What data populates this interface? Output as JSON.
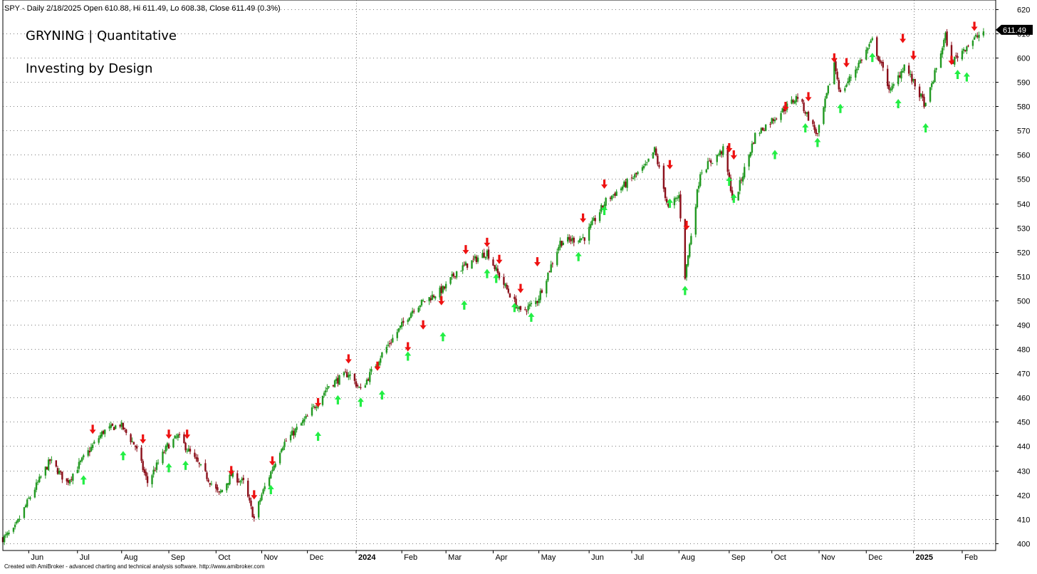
{
  "header": {
    "title": "SPY - Daily 2/18/2025 Open 610.88, Hi 611.49, Lo 608.38, Close 611.49 (0.3%)"
  },
  "branding": {
    "line1": "GRYNING | Quantitative",
    "line2": "Investing by Design"
  },
  "footer": {
    "credit": "Created with AmiBroker - advanced charting and technical analysis software. http://www.amibroker.com"
  },
  "colors": {
    "up": "#229922",
    "down": "#8b0f1a",
    "buy_arrow": "#22ee44",
    "sell_arrow": "#ee1111",
    "grid": "#7a7a7a",
    "last_price_bg": "#000000",
    "last_price_fg": "#ffffff"
  },
  "chart_data": {
    "type": "candlestick",
    "symbol": "SPY",
    "interval": "Daily",
    "title": "SPY - Daily 2/18/2025 Open 610.88, Hi 611.49, Lo 608.38, Close 611.49 (0.3%)",
    "last_bar": {
      "date": "2/18/2025",
      "open": 610.88,
      "high": 611.49,
      "low": 608.38,
      "close": 611.49,
      "change_pct": 0.3
    },
    "last_price_label": "611.49",
    "y_axis": {
      "position": "right",
      "range": [
        397,
        622
      ],
      "ticks": [
        400,
        410,
        420,
        430,
        440,
        450,
        460,
        470,
        480,
        490,
        500,
        510,
        520,
        530,
        540,
        550,
        560,
        570,
        580,
        590,
        600,
        610,
        620
      ]
    },
    "x_axis": {
      "range": [
        "2023-05-15",
        "2025-02-25"
      ],
      "ticks": [
        {
          "label": "Jun",
          "date": "2023-06-01",
          "bold": false
        },
        {
          "label": "Jul",
          "date": "2023-07-03",
          "bold": false
        },
        {
          "label": "Aug",
          "date": "2023-08-01",
          "bold": false
        },
        {
          "label": "Sep",
          "date": "2023-09-01",
          "bold": false
        },
        {
          "label": "Oct",
          "date": "2023-10-02",
          "bold": false
        },
        {
          "label": "Nov",
          "date": "2023-11-01",
          "bold": false
        },
        {
          "label": "Dec",
          "date": "2023-12-01",
          "bold": false
        },
        {
          "label": "2024",
          "date": "2024-01-02",
          "bold": true
        },
        {
          "label": "Feb",
          "date": "2024-02-01",
          "bold": false
        },
        {
          "label": "Mar",
          "date": "2024-03-01",
          "bold": false
        },
        {
          "label": "Apr",
          "date": "2024-04-01",
          "bold": false
        },
        {
          "label": "May",
          "date": "2024-05-01",
          "bold": false
        },
        {
          "label": "Jun",
          "date": "2024-06-03",
          "bold": false
        },
        {
          "label": "Jul",
          "date": "2024-07-01",
          "bold": false
        },
        {
          "label": "Aug",
          "date": "2024-08-01",
          "bold": false
        },
        {
          "label": "Sep",
          "date": "2024-09-03",
          "bold": false
        },
        {
          "label": "Oct",
          "date": "2024-10-01",
          "bold": false
        },
        {
          "label": "Nov",
          "date": "2024-11-01",
          "bold": false
        },
        {
          "label": "Dec",
          "date": "2024-12-02",
          "bold": false
        },
        {
          "label": "2025",
          "date": "2025-01-02",
          "bold": true
        },
        {
          "label": "Feb",
          "date": "2025-02-03",
          "bold": false
        }
      ],
      "year_dividers": [
        "2024-01-02",
        "2025-01-02"
      ]
    },
    "grid": {
      "horizontal": true,
      "vertical_at_year": true,
      "style": "dotted"
    },
    "price_path": [
      {
        "date": "2023-05-15",
        "close": 402
      },
      {
        "date": "2023-05-22",
        "close": 405
      },
      {
        "date": "2023-06-01",
        "close": 418
      },
      {
        "date": "2023-06-15",
        "close": 434
      },
      {
        "date": "2023-06-26",
        "close": 425
      },
      {
        "date": "2023-07-07",
        "close": 435
      },
      {
        "date": "2023-07-20",
        "close": 446
      },
      {
        "date": "2023-07-31",
        "close": 449
      },
      {
        "date": "2023-08-10",
        "close": 440
      },
      {
        "date": "2023-08-18",
        "close": 425
      },
      {
        "date": "2023-08-31",
        "close": 440
      },
      {
        "date": "2023-09-07",
        "close": 444
      },
      {
        "date": "2023-09-21",
        "close": 432
      },
      {
        "date": "2023-10-04",
        "close": 420
      },
      {
        "date": "2023-10-12",
        "close": 428
      },
      {
        "date": "2023-10-20",
        "close": 425
      },
      {
        "date": "2023-10-27",
        "close": 410
      },
      {
        "date": "2023-11-01",
        "close": 420
      },
      {
        "date": "2023-11-14",
        "close": 440
      },
      {
        "date": "2023-12-01",
        "close": 452
      },
      {
        "date": "2023-12-15",
        "close": 465
      },
      {
        "date": "2023-12-28",
        "close": 470
      },
      {
        "date": "2024-01-05",
        "close": 463
      },
      {
        "date": "2024-01-19",
        "close": 478
      },
      {
        "date": "2024-02-09",
        "close": 497
      },
      {
        "date": "2024-02-29",
        "close": 505
      },
      {
        "date": "2024-03-08",
        "close": 512
      },
      {
        "date": "2024-03-28",
        "close": 520
      },
      {
        "date": "2024-04-04",
        "close": 511
      },
      {
        "date": "2024-04-19",
        "close": 495
      },
      {
        "date": "2024-04-30",
        "close": 500
      },
      {
        "date": "2024-05-15",
        "close": 524
      },
      {
        "date": "2024-05-31",
        "close": 526
      },
      {
        "date": "2024-06-14",
        "close": 541
      },
      {
        "date": "2024-07-10",
        "close": 555
      },
      {
        "date": "2024-07-16",
        "close": 562
      },
      {
        "date": "2024-07-25",
        "close": 538
      },
      {
        "date": "2024-08-01",
        "close": 543
      },
      {
        "date": "2024-08-05",
        "close": 510
      },
      {
        "date": "2024-08-15",
        "close": 553
      },
      {
        "date": "2024-08-30",
        "close": 562
      },
      {
        "date": "2024-09-06",
        "close": 540
      },
      {
        "date": "2024-09-20",
        "close": 568
      },
      {
        "date": "2024-10-18",
        "close": 584
      },
      {
        "date": "2024-10-31",
        "close": 568
      },
      {
        "date": "2024-11-11",
        "close": 598
      },
      {
        "date": "2024-11-15",
        "close": 585
      },
      {
        "date": "2024-12-06",
        "close": 607
      },
      {
        "date": "2024-12-18",
        "close": 586
      },
      {
        "date": "2024-12-27",
        "close": 597
      },
      {
        "date": "2025-01-10",
        "close": 580
      },
      {
        "date": "2025-01-23",
        "close": 609
      },
      {
        "date": "2025-01-27",
        "close": 598
      },
      {
        "date": "2025-02-06",
        "close": 605
      },
      {
        "date": "2025-02-18",
        "close": 611.49
      }
    ],
    "buy_signals": [
      {
        "date": "2023-07-07",
        "price": 428
      },
      {
        "date": "2023-08-02",
        "price": 438
      },
      {
        "date": "2023-09-01",
        "price": 433
      },
      {
        "date": "2023-09-12",
        "price": 434
      },
      {
        "date": "2023-11-07",
        "price": 424
      },
      {
        "date": "2023-12-08",
        "price": 446
      },
      {
        "date": "2023-12-21",
        "price": 461
      },
      {
        "date": "2024-01-05",
        "price": 460
      },
      {
        "date": "2024-01-19",
        "price": 463
      },
      {
        "date": "2024-02-05",
        "price": 479
      },
      {
        "date": "2024-02-28",
        "price": 487
      },
      {
        "date": "2024-03-13",
        "price": 500
      },
      {
        "date": "2024-03-28",
        "price": 513
      },
      {
        "date": "2024-04-03",
        "price": 511
      },
      {
        "date": "2024-04-15",
        "price": 499
      },
      {
        "date": "2024-04-26",
        "price": 495
      },
      {
        "date": "2024-05-27",
        "price": 520
      },
      {
        "date": "2024-06-13",
        "price": 539
      },
      {
        "date": "2024-07-26",
        "price": 542
      },
      {
        "date": "2024-08-05",
        "price": 506
      },
      {
        "date": "2024-09-03",
        "price": 551
      },
      {
        "date": "2024-09-06",
        "price": 544
      },
      {
        "date": "2024-10-03",
        "price": 562
      },
      {
        "date": "2024-10-23",
        "price": 573
      },
      {
        "date": "2024-10-31",
        "price": 567
      },
      {
        "date": "2024-11-15",
        "price": 581
      },
      {
        "date": "2024-12-06",
        "price": 602
      },
      {
        "date": "2024-12-23",
        "price": 583
      },
      {
        "date": "2025-01-10",
        "price": 573
      },
      {
        "date": "2025-01-31",
        "price": 595
      },
      {
        "date": "2025-02-06",
        "price": 594
      }
    ],
    "sell_signals": [
      {
        "date": "2023-07-13",
        "price": 445
      },
      {
        "date": "2023-08-15",
        "price": 441
      },
      {
        "date": "2023-09-01",
        "price": 443
      },
      {
        "date": "2023-09-13",
        "price": 443
      },
      {
        "date": "2023-10-12",
        "price": 428
      },
      {
        "date": "2023-10-27",
        "price": 418
      },
      {
        "date": "2023-11-08",
        "price": 432
      },
      {
        "date": "2023-12-08",
        "price": 456
      },
      {
        "date": "2023-12-28",
        "price": 474
      },
      {
        "date": "2024-01-16",
        "price": 471
      },
      {
        "date": "2024-02-05",
        "price": 479
      },
      {
        "date": "2024-02-15",
        "price": 488
      },
      {
        "date": "2024-02-27",
        "price": 498
      },
      {
        "date": "2024-03-14",
        "price": 519
      },
      {
        "date": "2024-03-28",
        "price": 522
      },
      {
        "date": "2024-04-05",
        "price": 515
      },
      {
        "date": "2024-04-19",
        "price": 503
      },
      {
        "date": "2024-04-30",
        "price": 514
      },
      {
        "date": "2024-05-30",
        "price": 532
      },
      {
        "date": "2024-06-13",
        "price": 546
      },
      {
        "date": "2024-07-26",
        "price": 554
      },
      {
        "date": "2024-08-06",
        "price": 529
      },
      {
        "date": "2024-09-03",
        "price": 561
      },
      {
        "date": "2024-09-06",
        "price": 558
      },
      {
        "date": "2024-10-10",
        "price": 578
      },
      {
        "date": "2024-10-25",
        "price": 582
      },
      {
        "date": "2024-11-11",
        "price": 598
      },
      {
        "date": "2024-11-19",
        "price": 596
      },
      {
        "date": "2024-12-26",
        "price": 606
      },
      {
        "date": "2025-01-02",
        "price": 599
      },
      {
        "date": "2025-01-27",
        "price": 597
      },
      {
        "date": "2025-02-11",
        "price": 611
      }
    ]
  }
}
